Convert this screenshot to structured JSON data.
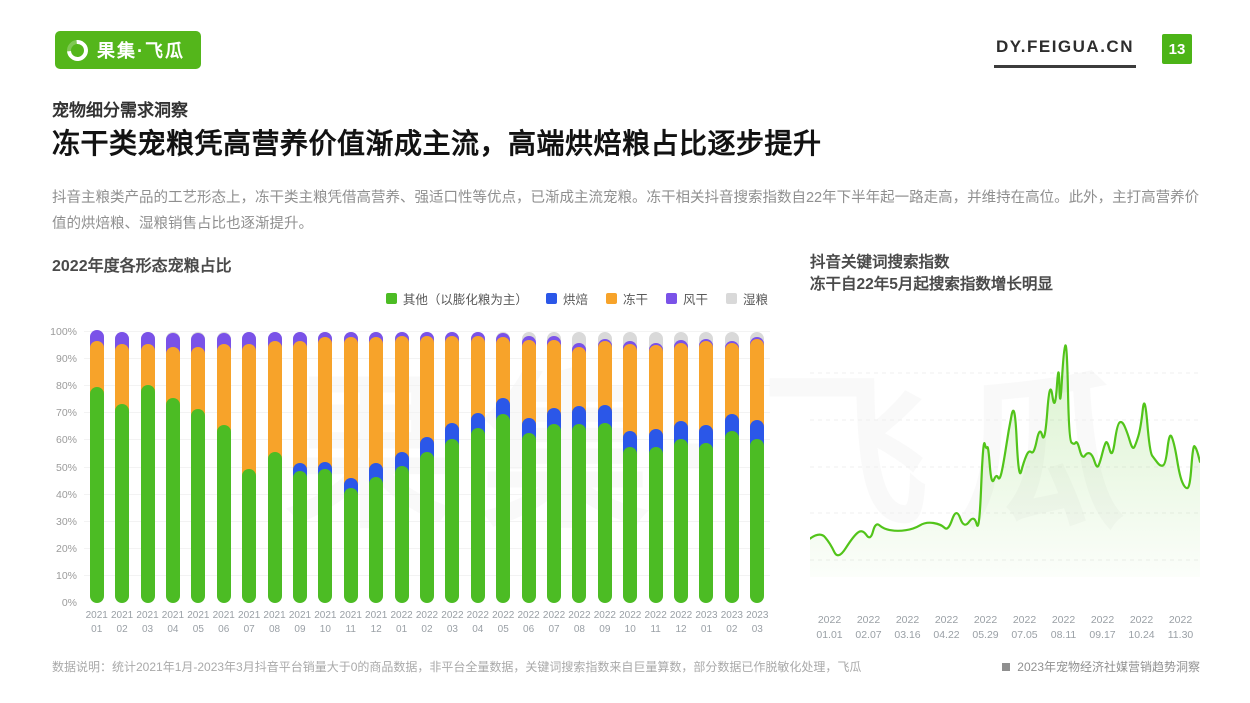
{
  "header": {
    "logo_text": "果集·飞瓜",
    "domain": "DY.FEIGUA.CN",
    "page_number": "13"
  },
  "section_label": "宠物细分需求洞察",
  "title": "冻干类宠粮凭高营养价值渐成主流，高端烘焙粮占比逐步提升",
  "paragraph": "抖音主粮类产品的工艺形态上，冻干类主粮凭借高营养、强适口性等优点，已渐成主流宠粮。冻干相关抖音搜索指数自22年下半年起一路走高，并维持在高位。此外，主打高营养价值的烘焙粮、湿粮销售占比也逐渐提升。",
  "watermark": "果集·飞瓜",
  "footer": {
    "note": "数据说明：统计2021年1月-2023年3月抖音平台销量大于0的商品数据，非平台全量数据，关键词搜索指数来自巨量算数，部分数据已作脱敏化处理，飞瓜",
    "report": "2023年宠物经济社媒营销趋势洞察"
  },
  "colors": {
    "brand_green": "#54b61b",
    "line_green": "#52c41a",
    "bar_other": "#4cbc24",
    "bar_baked": "#2b57e8",
    "bar_freeze_dried": "#f7a32a",
    "bar_air_dried": "#7a52e8",
    "bar_wet": "#d9d9d9"
  },
  "chart_data": [
    {
      "type": "bar",
      "stacked": true,
      "title": "2022年度各形态宠粮占比",
      "ylim": [
        0,
        100
      ],
      "yticks": [
        "0%",
        "10%",
        "20%",
        "30%",
        "40%",
        "50%",
        "60%",
        "70%",
        "80%",
        "90%",
        "100%"
      ],
      "grid": true,
      "legend_position": "top-right",
      "categories": [
        "2021 01",
        "2021 02",
        "2021 03",
        "2021 04",
        "2021 05",
        "2021 06",
        "2021 07",
        "2021 08",
        "2021 09",
        "2021 10",
        "2021 11",
        "2021 12",
        "2022 01",
        "2022 02",
        "2022 03",
        "2022 04",
        "2022 05",
        "2022 06",
        "2022 07",
        "2022 08",
        "2022 09",
        "2022 10",
        "2022 11",
        "2022 12",
        "2023 01",
        "2023 02",
        "2023 03"
      ],
      "series": [
        {
          "name": "其他（以膨化粮为主）",
          "color": "#4cbc24",
          "values": [
            77,
            71,
            78,
            73,
            69,
            63,
            47,
            53,
            46,
            47,
            40,
            44,
            48,
            53,
            58,
            62,
            67,
            60,
            63.5,
            63.5,
            64,
            55,
            55,
            58,
            56.5,
            61,
            58
          ]
        },
        {
          "name": "烘焙",
          "color": "#2b57e8",
          "values": [
            0,
            0,
            0,
            0,
            0,
            0,
            0,
            0,
            3,
            2.5,
            3.5,
            5,
            5,
            5.5,
            6,
            5.5,
            6,
            5.5,
            6,
            6.5,
            6.5,
            6,
            6.5,
            6.5,
            6.5,
            6,
            7
          ]
        },
        {
          "name": "冻干",
          "color": "#f7a32a",
          "values": [
            17,
            22,
            15,
            19,
            23,
            30,
            46,
            41,
            45,
            46,
            52,
            46.5,
            43,
            37.5,
            32,
            28.5,
            22.5,
            29,
            25,
            22,
            23.5,
            32,
            31,
            29,
            31,
            26.5,
            30
          ]
        },
        {
          "name": "风干",
          "color": "#7a52e8",
          "values": [
            4,
            4.5,
            4.5,
            5,
            5,
            4,
            4.5,
            3.5,
            3.5,
            2,
            2,
            2,
            1.5,
            1.5,
            1.5,
            1.5,
            1.5,
            1.5,
            1.5,
            1.5,
            1,
            1,
            1,
            1,
            1,
            0.5,
            0.5
          ]
        },
        {
          "name": "湿粮",
          "color": "#d9d9d9",
          "values": [
            2,
            2.5,
            2.5,
            3,
            3,
            3,
            2.5,
            2.5,
            2.5,
            2.5,
            2.5,
            2.5,
            2.5,
            2.5,
            2.5,
            2.5,
            3,
            4,
            4,
            6.5,
            5,
            6,
            6.5,
            5.5,
            5,
            6,
            4.5
          ]
        }
      ]
    },
    {
      "type": "line",
      "title": "抖音关键词搜索指数",
      "subtitle": "冻干自22年5月起搜索指数增长明显",
      "grid": "dashed-horizontal",
      "x_ticks": [
        "2022 01.01",
        "2022 02.07",
        "2022 03.16",
        "2022 04.22",
        "2022 05.29",
        "2022 07.05",
        "2022 08.11",
        "2022 09.17",
        "2022 10.24",
        "2022 11.30"
      ],
      "ylim": [
        0,
        100
      ],
      "points": [
        [
          0,
          16
        ],
        [
          2.6,
          19
        ],
        [
          5.2,
          14
        ],
        [
          7.2,
          7
        ],
        [
          11.1,
          17
        ],
        [
          13.4,
          20
        ],
        [
          15.5,
          15
        ],
        [
          16.8,
          23
        ],
        [
          18.9,
          20
        ],
        [
          22.5,
          19
        ],
        [
          26.6,
          20
        ],
        [
          29.7,
          23
        ],
        [
          33.6,
          22
        ],
        [
          35.4,
          19
        ],
        [
          37.5,
          29
        ],
        [
          39.5,
          20
        ],
        [
          42.1,
          26
        ],
        [
          43.4,
          18
        ],
        [
          44.4,
          58
        ],
        [
          45.2,
          53
        ],
        [
          45.7,
          55
        ],
        [
          46.5,
          38
        ],
        [
          47.8,
          43
        ],
        [
          48.6,
          40
        ],
        [
          49.6,
          47
        ],
        [
          50.9,
          61
        ],
        [
          52.5,
          74
        ],
        [
          53.5,
          40
        ],
        [
          54.8,
          48
        ],
        [
          56.1,
          53
        ],
        [
          57.4,
          51
        ],
        [
          58.9,
          63
        ],
        [
          60.2,
          55
        ],
        [
          61.5,
          83
        ],
        [
          62.8,
          68
        ],
        [
          63.8,
          91
        ],
        [
          64.1,
          68
        ],
        [
          65.1,
          96
        ],
        [
          65.9,
          97
        ],
        [
          66.4,
          57
        ],
        [
          67.7,
          55
        ],
        [
          68.5,
          57
        ],
        [
          69.8,
          49
        ],
        [
          71.1,
          52
        ],
        [
          72.4,
          51
        ],
        [
          73.6,
          45
        ],
        [
          74.4,
          48
        ],
        [
          75.5,
          55
        ],
        [
          76.2,
          57
        ],
        [
          77.5,
          49
        ],
        [
          78.8,
          64
        ],
        [
          80.1,
          65
        ],
        [
          81.4,
          60
        ],
        [
          82.7,
          53
        ],
        [
          83.5,
          55
        ],
        [
          84.8,
          62
        ],
        [
          85.8,
          77
        ],
        [
          87.1,
          52
        ],
        [
          88.4,
          49
        ],
        [
          89.9,
          46
        ],
        [
          91.2,
          47
        ],
        [
          92.2,
          61
        ],
        [
          93.5,
          55
        ],
        [
          94.8,
          42
        ],
        [
          96.1,
          37
        ],
        [
          97.4,
          37
        ],
        [
          98.2,
          55
        ],
        [
          99.0,
          54
        ],
        [
          100,
          48
        ]
      ]
    }
  ]
}
